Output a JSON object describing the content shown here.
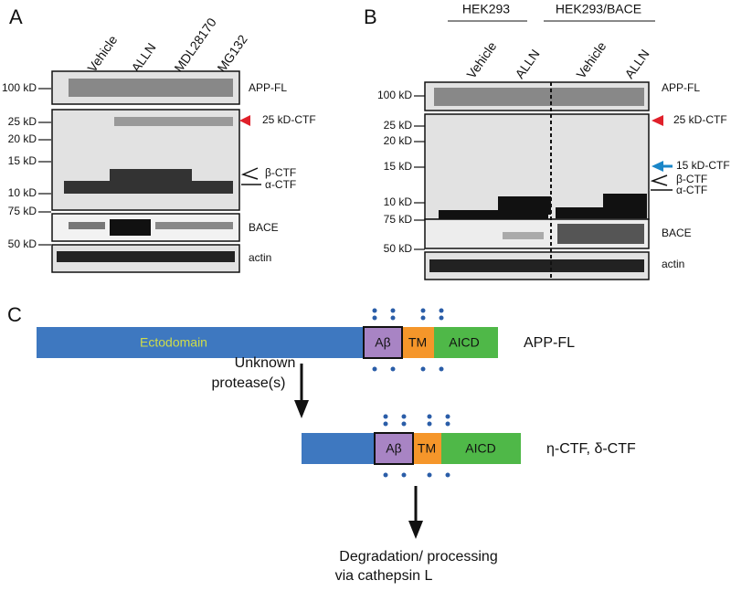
{
  "panel_a": {
    "label": "A",
    "lanes": [
      "Vehicle",
      "ALLN",
      "MDL28170",
      "MG132"
    ],
    "markers": [
      "100 kD",
      "25 kD",
      "20 kD",
      "15 kD",
      "10 kD",
      "75 kD",
      "50 kD"
    ],
    "bands": [
      "APP-FL",
      "25 kD-CTF",
      "β-CTF",
      "α-CTF",
      "BACE",
      "actin"
    ]
  },
  "panel_b": {
    "label": "B",
    "groups": [
      "HEK293",
      "HEK293/BACE"
    ],
    "lanes": [
      "Vehicle",
      "ALLN",
      "Vehicle",
      "ALLN"
    ],
    "markers": [
      "100 kD",
      "25 kD",
      "20 kD",
      "15 kD",
      "10 kD",
      "75 kD",
      "50 kD"
    ],
    "bands": [
      "APP-FL",
      "25 kD-CTF",
      "15 kD-CTF",
      "β-CTF",
      "α-CTF",
      "BACE",
      "actin"
    ]
  },
  "panel_c": {
    "label": "C",
    "full": {
      "segments": [
        "Ectodomain",
        "Aβ",
        "TM",
        "AICD"
      ],
      "name": "APP-FL"
    },
    "step1": [
      "Unknown",
      "protease(s)"
    ],
    "truncated": {
      "segments": [
        "Aβ",
        "TM",
        "AICD"
      ],
      "name": "η-CTF, δ-CTF"
    },
    "step2": [
      "Degradation/ processing",
      "via cathepsin L"
    ]
  }
}
